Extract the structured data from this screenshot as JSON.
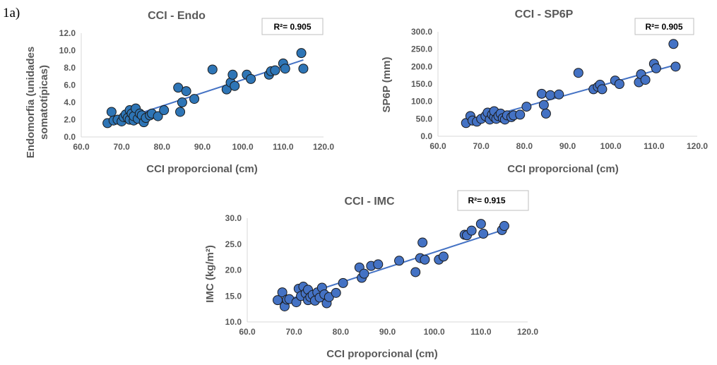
{
  "figure_label": "1a)",
  "chart_data": [
    {
      "type": "scatter",
      "title": "CCI - Endo",
      "xlabel": "CCI proporcional (cm)",
      "ylabel_lines": [
        "Endomorfia (unidades",
        "somatotípicas)"
      ],
      "xlim": [
        60,
        120
      ],
      "ylim": [
        0,
        12
      ],
      "xticks": [
        60,
        70,
        80,
        90,
        100,
        110,
        120
      ],
      "xtick_labels": [
        "60.0",
        "70.0",
        "80.0",
        "90.0",
        "100.0",
        "110.0",
        "120.0"
      ],
      "yticks": [
        0,
        2,
        4,
        6,
        8,
        10,
        12
      ],
      "ytick_labels": [
        "0.0",
        "2.0",
        "4.0",
        "6.0",
        "8.0",
        "10.0",
        "12.0"
      ],
      "r2_label": "R²= 0.905",
      "trendline": {
        "x1": 67,
        "y1": 1.6,
        "x2": 115,
        "y2": 8.9
      },
      "color": "#2e75b6",
      "points": [
        [
          66.5,
          1.6
        ],
        [
          67.5,
          2.9
        ],
        [
          68,
          1.9
        ],
        [
          69,
          2.0
        ],
        [
          70,
          1.8
        ],
        [
          70.5,
          2.3
        ],
        [
          71,
          2.6
        ],
        [
          71.5,
          2.2
        ],
        [
          72,
          3.1
        ],
        [
          72,
          2.0
        ],
        [
          72.5,
          2.7
        ],
        [
          73,
          1.9
        ],
        [
          73,
          2.4
        ],
        [
          73.5,
          3.3
        ],
        [
          74,
          2.1
        ],
        [
          74.5,
          2.7
        ],
        [
          75,
          2.5
        ],
        [
          75.5,
          1.7
        ],
        [
          76,
          2.2
        ],
        [
          77,
          2.5
        ],
        [
          77.5,
          2.7
        ],
        [
          79,
          2.4
        ],
        [
          80.5,
          3.1
        ],
        [
          84,
          5.7
        ],
        [
          84.5,
          2.9
        ],
        [
          85,
          4.0
        ],
        [
          86,
          5.3
        ],
        [
          88,
          4.4
        ],
        [
          92.5,
          7.8
        ],
        [
          96,
          5.5
        ],
        [
          97,
          6.3
        ],
        [
          97.5,
          7.2
        ],
        [
          98,
          5.9
        ],
        [
          101,
          7.2
        ],
        [
          102,
          6.7
        ],
        [
          106.5,
          7.2
        ],
        [
          107,
          7.6
        ],
        [
          108,
          7.7
        ],
        [
          110,
          8.5
        ],
        [
          110.5,
          7.9
        ],
        [
          114.5,
          9.7
        ],
        [
          115,
          7.9
        ]
      ]
    },
    {
      "type": "scatter",
      "title": "CCI - SP6P",
      "xlabel": "CCI proporcional (cm)",
      "ylabel_lines": [
        "SP6P (mm)"
      ],
      "xlim": [
        60,
        120
      ],
      "ylim": [
        0,
        300
      ],
      "xticks": [
        60,
        70,
        80,
        90,
        100,
        110,
        120
      ],
      "xtick_labels": [
        "60.0",
        "70.0",
        "80.0",
        "90.0",
        "100.0",
        "110.0",
        "120.0"
      ],
      "yticks": [
        0,
        50,
        100,
        150,
        200,
        250,
        300
      ],
      "ytick_labels": [
        "0.0",
        "50.0",
        "100.0",
        "150.0",
        "200.0",
        "250.0",
        "300.0"
      ],
      "r2_label": "R²= 0.905",
      "trendline": {
        "x1": 67,
        "y1": 40,
        "x2": 115,
        "y2": 205
      },
      "color": "#4472c4",
      "points": [
        [
          66.5,
          38
        ],
        [
          67.5,
          58
        ],
        [
          68,
          45
        ],
        [
          69,
          42
        ],
        [
          70,
          50
        ],
        [
          71,
          58
        ],
        [
          71.5,
          68
        ],
        [
          72,
          48
        ],
        [
          72.5,
          62
        ],
        [
          73,
          55
        ],
        [
          73,
          72
        ],
        [
          73.5,
          50
        ],
        [
          74,
          58
        ],
        [
          74.5,
          65
        ],
        [
          75,
          52
        ],
        [
          75.5,
          48
        ],
        [
          76,
          60
        ],
        [
          77,
          55
        ],
        [
          77.5,
          60
        ],
        [
          79,
          62
        ],
        [
          80.5,
          85
        ],
        [
          84,
          122
        ],
        [
          84.5,
          90
        ],
        [
          85,
          65
        ],
        [
          86,
          118
        ],
        [
          88,
          120
        ],
        [
          92.5,
          182
        ],
        [
          96,
          135
        ],
        [
          97,
          142
        ],
        [
          97.5,
          148
        ],
        [
          98,
          135
        ],
        [
          101,
          160
        ],
        [
          102,
          150
        ],
        [
          106.5,
          155
        ],
        [
          107,
          178
        ],
        [
          108,
          162
        ],
        [
          110,
          208
        ],
        [
          110.5,
          195
        ],
        [
          114.5,
          265
        ],
        [
          115,
          200
        ]
      ]
    },
    {
      "type": "scatter",
      "title": "CCI - IMC",
      "xlabel": "CCI proporcional (cm)",
      "ylabel_lines": [
        "IMC  (kg/m²)"
      ],
      "xlim": [
        60,
        120
      ],
      "ylim": [
        10,
        30
      ],
      "xticks": [
        60,
        70,
        80,
        90,
        100,
        110,
        120
      ],
      "xtick_labels": [
        "60.0",
        "70.0",
        "80.0",
        "90.0",
        "100.0",
        "110.0",
        "120.0"
      ],
      "yticks": [
        10,
        15,
        20,
        25,
        30
      ],
      "ytick_labels": [
        "10.0",
        "15.0",
        "20.0",
        "25.0",
        "30.0"
      ],
      "r2_label": "R²= 0.915",
      "trendline": {
        "x1": 67,
        "y1": 13.8,
        "x2": 115,
        "y2": 27.8
      },
      "color": "#4472c4",
      "points": [
        [
          66.5,
          14.2
        ],
        [
          67.5,
          15.7
        ],
        [
          68,
          13.0
        ],
        [
          68.5,
          14.3
        ],
        [
          69,
          14.4
        ],
        [
          70.5,
          13.8
        ],
        [
          71,
          16.4
        ],
        [
          71.5,
          15.0
        ],
        [
          72,
          16.8
        ],
        [
          72.5,
          15.5
        ],
        [
          73,
          14.2
        ],
        [
          73,
          16.2
        ],
        [
          73.5,
          14.8
        ],
        [
          74,
          15.2
        ],
        [
          74.5,
          14.1
        ],
        [
          75,
          15.7
        ],
        [
          75.5,
          14.7
        ],
        [
          76,
          16.6
        ],
        [
          76.5,
          15.3
        ],
        [
          77,
          13.6
        ],
        [
          77.5,
          14.8
        ],
        [
          79,
          15.6
        ],
        [
          80.5,
          17.5
        ],
        [
          84,
          20.5
        ],
        [
          84.5,
          18.5
        ],
        [
          85,
          19.3
        ],
        [
          86.5,
          20.8
        ],
        [
          88,
          21.1
        ],
        [
          92.5,
          21.8
        ],
        [
          96,
          19.6
        ],
        [
          97,
          22.3
        ],
        [
          97.5,
          25.3
        ],
        [
          98,
          22.0
        ],
        [
          101,
          22.0
        ],
        [
          102,
          22.6
        ],
        [
          106.5,
          26.8
        ],
        [
          107,
          26.7
        ],
        [
          108,
          27.6
        ],
        [
          110,
          28.9
        ],
        [
          110.5,
          27.0
        ],
        [
          114.5,
          27.7
        ],
        [
          115,
          28.5
        ]
      ]
    }
  ]
}
